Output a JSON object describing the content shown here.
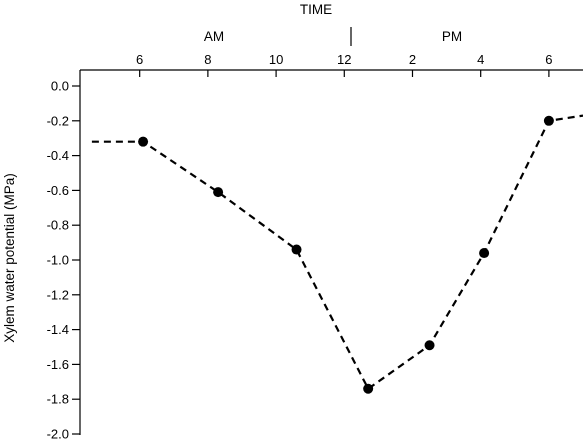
{
  "chart_data": {
    "type": "line",
    "title": "",
    "xlabel": "TIME",
    "ylabel": "Xylem water potential (MPa)",
    "x_tick_labels": [
      "6",
      "8",
      "10",
      "12",
      "2",
      "4",
      "6"
    ],
    "x_tick_hours": [
      6,
      8,
      10,
      12,
      14,
      16,
      18
    ],
    "period_labels": [
      "AM",
      "PM"
    ],
    "y_tick_labels": [
      "0.0",
      "-0.2",
      "-0.4",
      "-0.6",
      "-0.8",
      "-1.0",
      "-1.2",
      "-1.4",
      "-1.6",
      "-1.8",
      "-2.0"
    ],
    "y_ticks": [
      0.0,
      -0.2,
      -0.4,
      -0.6,
      -0.8,
      -1.0,
      -1.2,
      -1.4,
      -1.6,
      -1.8,
      -2.0
    ],
    "ylim": [
      -2.0,
      0.0
    ],
    "xlim": [
      4.25,
      19.0
    ],
    "series": [
      {
        "points": [
          {
            "x": 6.1,
            "y": -0.32
          },
          {
            "x": 8.3,
            "y": -0.61
          },
          {
            "x": 10.6,
            "y": -0.94
          },
          {
            "x": 12.7,
            "y": -1.74
          },
          {
            "x": 14.5,
            "y": -1.49
          },
          {
            "x": 16.1,
            "y": -0.96
          },
          {
            "x": 18.0,
            "y": -0.2
          }
        ],
        "lead_in": [
          {
            "x": 4.6,
            "y": -0.32
          },
          {
            "x": 6.1,
            "y": -0.32
          }
        ],
        "lead_out": [
          {
            "x": 18.0,
            "y": -0.2
          },
          {
            "x": 19.0,
            "y": -0.17
          }
        ]
      }
    ],
    "grid": false,
    "legend": "none"
  }
}
